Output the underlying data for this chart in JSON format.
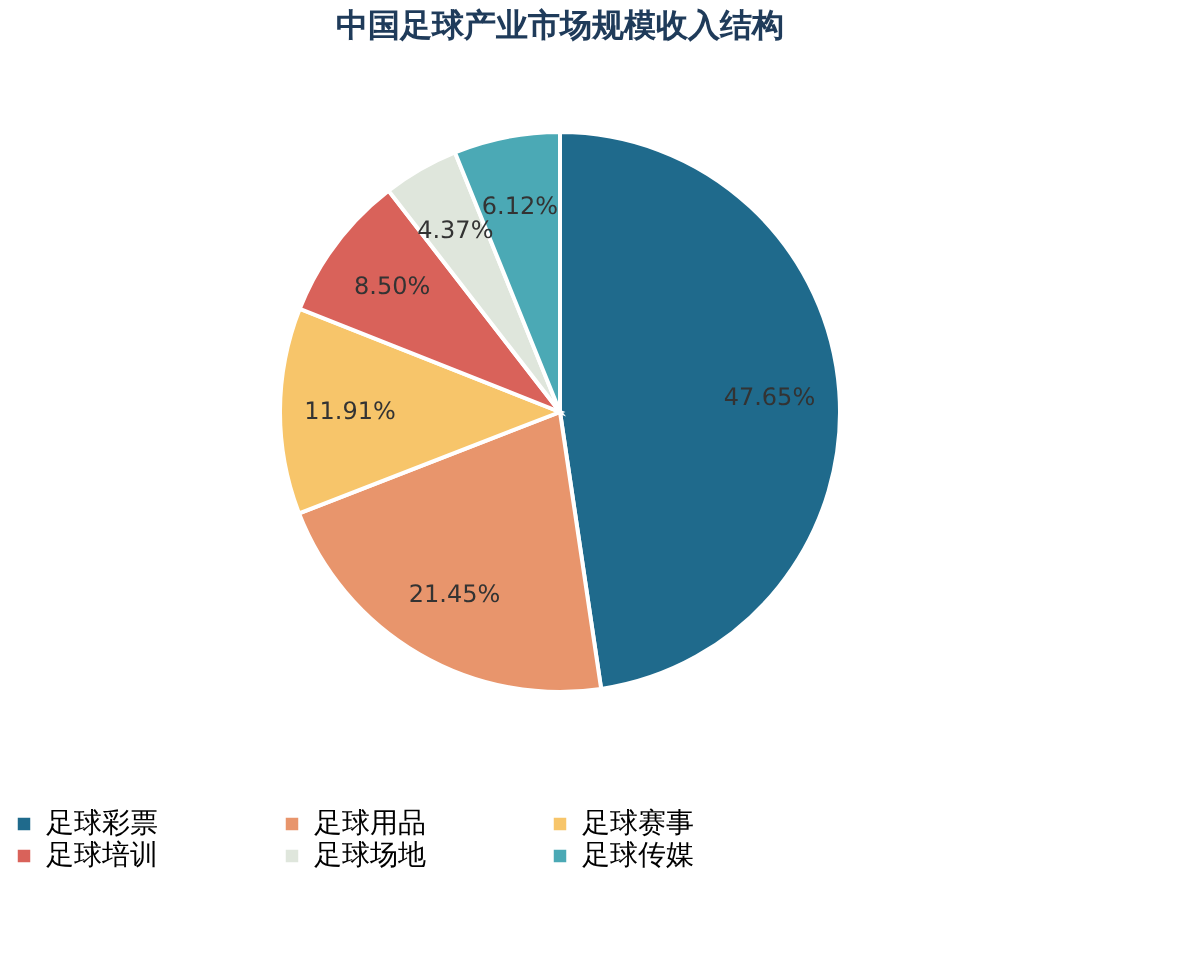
{
  "chart_data": {
    "type": "pie",
    "title": "中国足球产业市场规模收入结构",
    "categories": [
      "足球彩票",
      "足球用品",
      "足球赛事",
      "足球培训",
      "足球场地",
      "足球传媒"
    ],
    "values": [
      47.65,
      21.45,
      11.91,
      8.5,
      4.37,
      6.12
    ],
    "colors": [
      "#1f6a8c",
      "#e8956c",
      "#f7c56a",
      "#d9625a",
      "#dfe6dc",
      "#4ba9b5"
    ],
    "value_labels": [
      "47.65%",
      "21.45%",
      "11.91%",
      "8.50%",
      "4.37%",
      "6.12%"
    ],
    "legend": "bottom"
  }
}
